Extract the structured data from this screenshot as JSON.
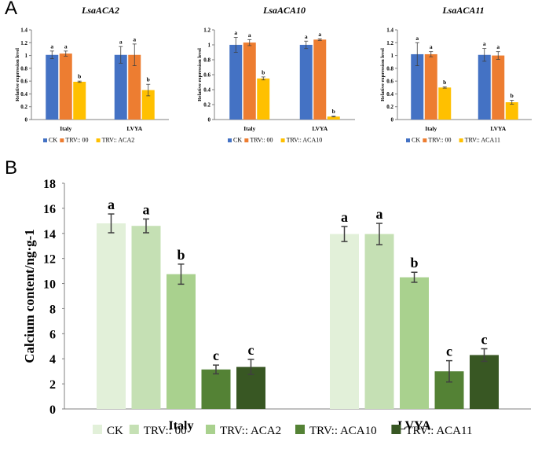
{
  "panel_labels": {
    "a": "A",
    "b": "B"
  },
  "colors": {
    "ck_small": "#4472C4",
    "trv00_small": "#ED7D31",
    "trv_small": "#FFC000",
    "ck_big": "#E2F0D9",
    "trv00_big": "#C5E0B4",
    "aca2_big": "#A9D18E",
    "aca10_big": "#548235",
    "aca11_big": "#385723",
    "axis": "#808080",
    "text": "#000000"
  },
  "chart_data": [
    {
      "type": "bar",
      "title": "LsaACA2",
      "ylabel": "Relative expression level",
      "ylim": [
        0,
        1.4
      ],
      "yticks": [
        "0",
        "0.2",
        "0.4",
        "0.6",
        "0.8",
        "1",
        "1.2",
        "1.4"
      ],
      "categories": [
        "Italy",
        "LVYA"
      ],
      "series": [
        {
          "name": "CK",
          "values": [
            1.01,
            1.01
          ],
          "errors": [
            0.06,
            0.13
          ],
          "letters": [
            "a",
            "a"
          ]
        },
        {
          "name": "TRV:: 00",
          "values": [
            1.03,
            1.01
          ],
          "errors": [
            0.04,
            0.17
          ],
          "letters": [
            "a",
            "a"
          ]
        },
        {
          "name": "TRV:: ACA2",
          "values": [
            0.59,
            0.46
          ],
          "errors": [
            0.01,
            0.09
          ],
          "letters": [
            "b",
            "b"
          ]
        }
      ]
    },
    {
      "type": "bar",
      "title": "LsaACA10",
      "ylabel": "Relative expression level",
      "ylim": [
        0,
        1.2
      ],
      "yticks": [
        "0",
        "0.2",
        "0.4",
        "0.6",
        "0.8",
        "1",
        "1.2"
      ],
      "categories": [
        "Italy",
        "LVYA"
      ],
      "series": [
        {
          "name": "CK",
          "values": [
            1.0,
            1.0
          ],
          "errors": [
            0.1,
            0.05
          ],
          "letters": [
            "a",
            "a"
          ]
        },
        {
          "name": "TRV:: 00",
          "values": [
            1.03,
            1.07
          ],
          "errors": [
            0.04,
            0.01
          ],
          "letters": [
            "a",
            "a"
          ]
        },
        {
          "name": "TRV:: ACA10",
          "values": [
            0.55,
            0.04
          ],
          "errors": [
            0.02,
            0.005
          ],
          "letters": [
            "b",
            "b"
          ]
        }
      ]
    },
    {
      "type": "bar",
      "title": "LsaACA11",
      "ylabel": "Relative expression level",
      "ylim": [
        0,
        1.4
      ],
      "yticks": [
        "0",
        "0.2",
        "0.4",
        "0.6",
        "0.8",
        "1",
        "1.2",
        "1.4"
      ],
      "categories": [
        "Italy",
        "LVYA"
      ],
      "series": [
        {
          "name": "CK",
          "values": [
            1.02,
            1.01
          ],
          "errors": [
            0.18,
            0.1
          ],
          "letters": [
            "a",
            "a"
          ]
        },
        {
          "name": "TRV:: 00",
          "values": [
            1.02,
            1.0
          ],
          "errors": [
            0.04,
            0.06
          ],
          "letters": [
            "a",
            "a"
          ]
        },
        {
          "name": "TRV:: ACA11",
          "values": [
            0.5,
            0.27
          ],
          "errors": [
            0.01,
            0.03
          ],
          "letters": [
            "b",
            "b"
          ]
        }
      ]
    },
    {
      "type": "bar",
      "title": "",
      "ylabel": "Calcium content/ng·g-1",
      "ylim": [
        0,
        18
      ],
      "yticks": [
        "0",
        "2",
        "4",
        "6",
        "8",
        "10",
        "12",
        "14",
        "16",
        "18"
      ],
      "categories": [
        "Italy",
        "LVYA"
      ],
      "series": [
        {
          "name": "CK",
          "values": [
            14.8,
            13.95
          ],
          "errors": [
            0.75,
            0.6
          ],
          "letters": [
            "a",
            "a"
          ]
        },
        {
          "name": "TRV:: 00",
          "values": [
            14.6,
            13.95
          ],
          "errors": [
            0.55,
            0.85
          ],
          "letters": [
            "a",
            "a"
          ]
        },
        {
          "name": "TRV:: ACA2",
          "values": [
            10.75,
            10.5
          ],
          "errors": [
            0.8,
            0.4
          ],
          "letters": [
            "b",
            "b"
          ]
        },
        {
          "name": "TRV:: ACA10",
          "values": [
            3.15,
            3.0
          ],
          "errors": [
            0.35,
            0.85
          ],
          "letters": [
            "c",
            "c"
          ]
        },
        {
          "name": "TRV:: ACA11",
          "values": [
            3.35,
            4.3
          ],
          "errors": [
            0.6,
            0.5
          ],
          "letters": [
            "c",
            "c"
          ]
        }
      ]
    }
  ]
}
